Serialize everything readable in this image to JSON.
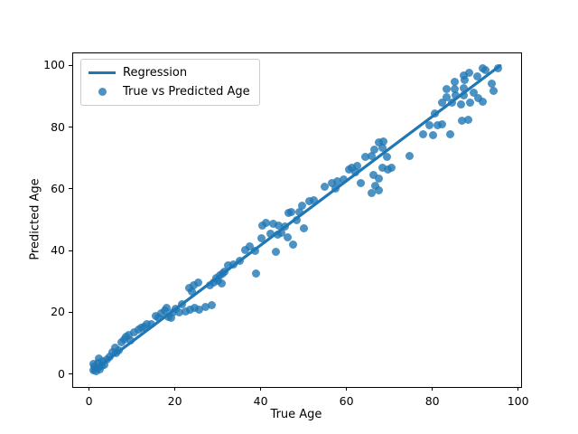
{
  "figure": {
    "xlabel": "True Age",
    "ylabel": "Predicted Age"
  },
  "legend": {
    "items": [
      {
        "type": "line",
        "label": "Regression"
      },
      {
        "type": "marker",
        "label": "True vs Predicted Age"
      }
    ]
  },
  "colors": {
    "accent": "#1f77b4",
    "marker": "rgba(31,119,180,0.8)",
    "frame": "#000000"
  },
  "chart_data": {
    "type": "scatter",
    "title": "",
    "xlabel": "True Age",
    "ylabel": "Predicted Age",
    "xlim": [
      -3.7,
      100.7
    ],
    "ylim": [
      -4.2,
      103.9
    ],
    "xticks": [
      0,
      20,
      40,
      60,
      80,
      100
    ],
    "yticks": [
      0,
      20,
      40,
      60,
      80,
      100
    ],
    "grid": false,
    "legend_position": "upper left",
    "series": [
      {
        "name": "Regression",
        "type": "line",
        "x": [
          0.8,
          95.8
        ],
        "y": [
          0.9,
          99.9
        ]
      },
      {
        "name": "True vs Predicted Age",
        "type": "scatter",
        "points": [
          [
            1,
            1.2
          ],
          [
            1.3,
            2.3
          ],
          [
            1.6,
            1
          ],
          [
            2,
            2.1
          ],
          [
            2.1,
            3.6
          ],
          [
            2.5,
            1.6
          ],
          [
            2.9,
            2.6
          ],
          [
            3.1,
            4.1
          ],
          [
            3.6,
            3.1
          ],
          [
            2.3,
            4.9
          ],
          [
            4.1,
            4.6
          ],
          [
            1.1,
            3.2
          ],
          [
            4.9,
            5.6
          ],
          [
            5.5,
            7.1
          ],
          [
            6,
            8.4
          ],
          [
            6.3,
            6.9
          ],
          [
            7,
            7.6
          ],
          [
            7.6,
            10.4
          ],
          [
            8.1,
            11.2
          ],
          [
            8.6,
            12.1
          ],
          [
            9.2,
            12.6
          ],
          [
            9.6,
            10.9
          ],
          [
            10.6,
            13.4
          ],
          [
            11.5,
            14.4
          ],
          [
            12.1,
            15.1
          ],
          [
            12.9,
            15.4
          ],
          [
            13.4,
            16.2
          ],
          [
            14.6,
            16.1
          ],
          [
            15.6,
            18.9
          ],
          [
            16.1,
            18.1
          ],
          [
            16.9,
            19.6
          ],
          [
            17.6,
            20.6
          ],
          [
            18.1,
            21.4
          ],
          [
            18.6,
            18.6
          ],
          [
            19.1,
            18.3
          ],
          [
            19.6,
            20.1
          ],
          [
            20.1,
            21.1
          ],
          [
            21.6,
            22.6
          ],
          [
            21.1,
            19.9
          ],
          [
            22.6,
            20.4
          ],
          [
            23.6,
            20.9
          ],
          [
            24.6,
            21.3
          ],
          [
            25.6,
            20.9
          ],
          [
            27.1,
            21.6
          ],
          [
            28.6,
            22.4
          ],
          [
            23.4,
            27.9
          ],
          [
            24.4,
            28.9
          ],
          [
            25.4,
            29.6
          ],
          [
            23.9,
            26.6
          ],
          [
            28.1,
            28.8
          ],
          [
            29.1,
            29.6
          ],
          [
            29.6,
            31.1
          ],
          [
            30.1,
            30.1
          ],
          [
            30.6,
            32.1
          ],
          [
            31.1,
            32.6
          ],
          [
            31.6,
            33.1
          ],
          [
            30.9,
            29.2
          ],
          [
            32.3,
            35.2
          ],
          [
            33.6,
            35.6
          ],
          [
            35.1,
            36.6
          ],
          [
            39,
            32.5
          ],
          [
            36.4,
            40.3
          ],
          [
            37.4,
            41.3
          ],
          [
            38.8,
            39.8
          ],
          [
            40.2,
            43.9
          ],
          [
            40.3,
            48.2
          ],
          [
            41.2,
            49.1
          ],
          [
            43,
            48.6
          ],
          [
            44.1,
            48.2
          ],
          [
            45.7,
            47.7
          ],
          [
            42.2,
            45.6
          ],
          [
            44,
            45.1
          ],
          [
            44.8,
            45.7
          ],
          [
            46.2,
            44.2
          ],
          [
            43.6,
            39.6
          ],
          [
            47.5,
            41.9
          ],
          [
            46.4,
            52.1
          ],
          [
            47.1,
            52.4
          ],
          [
            49.6,
            54.5
          ],
          [
            51.4,
            55.9
          ],
          [
            50,
            47.1
          ],
          [
            48.3,
            49.9
          ],
          [
            52.3,
            56.2
          ],
          [
            49.1,
            52.4
          ],
          [
            54.9,
            60.8
          ],
          [
            56.7,
            61.8
          ],
          [
            57.8,
            62.4
          ],
          [
            57.4,
            60.1
          ],
          [
            59.4,
            63.1
          ],
          [
            60.5,
            66.2
          ],
          [
            61.3,
            66.9
          ],
          [
            62,
            65.3
          ],
          [
            62.4,
            67.5
          ],
          [
            63.3,
            61.8
          ],
          [
            64.3,
            70.3
          ],
          [
            65.8,
            70.6
          ],
          [
            66.2,
            64.4
          ],
          [
            66.4,
            72.6
          ],
          [
            66.8,
            60.9
          ],
          [
            67.5,
            75
          ],
          [
            68.3,
            73.2
          ],
          [
            68.6,
            75.4
          ],
          [
            68.3,
            66.8
          ],
          [
            69.4,
            70.3
          ],
          [
            69.7,
            66.2
          ],
          [
            67.5,
            63.3
          ],
          [
            65.9,
            58.6
          ],
          [
            67.6,
            59.4
          ],
          [
            70.6,
            66.9
          ],
          [
            74.8,
            70.6
          ],
          [
            77.9,
            77.7
          ],
          [
            79.3,
            80.5
          ],
          [
            80.2,
            77.5
          ],
          [
            80.6,
            84.3
          ],
          [
            81.3,
            80.6
          ],
          [
            82.2,
            80.9
          ],
          [
            82.3,
            87.9
          ],
          [
            83.3,
            92.3
          ],
          [
            83.4,
            89.6
          ],
          [
            84.1,
            77.6
          ],
          [
            84.7,
            87.9
          ],
          [
            85.2,
            94.6
          ],
          [
            85.3,
            92.3
          ],
          [
            85.5,
            90.2
          ],
          [
            86.8,
            87.3
          ],
          [
            86.9,
            82.1
          ],
          [
            87.3,
            92.6
          ],
          [
            87.4,
            90.2
          ],
          [
            87.6,
            95.2
          ],
          [
            88.3,
            82.4
          ],
          [
            88.9,
            87.9
          ],
          [
            87.4,
            96.7
          ],
          [
            88.6,
            97.6
          ],
          [
            90.5,
            96.4
          ],
          [
            91.7,
            99
          ],
          [
            92.4,
            98.4
          ],
          [
            95.3,
            99.2
          ],
          [
            93.8,
            94
          ],
          [
            94.3,
            91.7
          ],
          [
            90.7,
            89.3
          ],
          [
            91.8,
            88.2
          ],
          [
            89.6,
            91.2
          ]
        ]
      }
    ]
  }
}
